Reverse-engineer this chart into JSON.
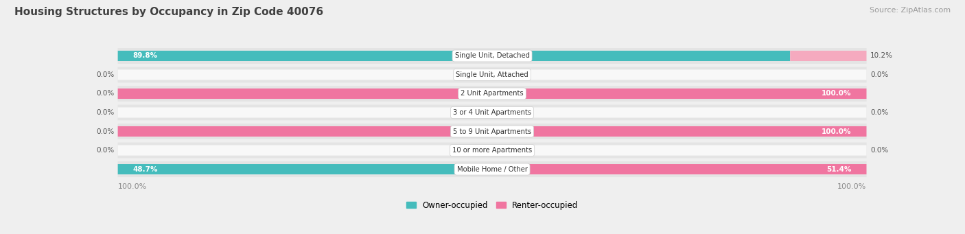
{
  "title": "Housing Structures by Occupancy in Zip Code 40076",
  "source": "Source: ZipAtlas.com",
  "categories": [
    "Single Unit, Detached",
    "Single Unit, Attached",
    "2 Unit Apartments",
    "3 or 4 Unit Apartments",
    "5 to 9 Unit Apartments",
    "10 or more Apartments",
    "Mobile Home / Other"
  ],
  "owner_pct": [
    89.8,
    0.0,
    0.0,
    0.0,
    0.0,
    0.0,
    48.7
  ],
  "renter_pct": [
    10.2,
    0.0,
    100.0,
    0.0,
    100.0,
    0.0,
    51.4
  ],
  "owner_color": "#45BCBC",
  "renter_color": "#F075A0",
  "owner_color_light": "#A8DEDE",
  "renter_color_light": "#F5AABF",
  "bg_color": "#EFEFEF",
  "row_bg": "#E4E4E4",
  "bar_bg": "#F8F8F8",
  "title_color": "#404040",
  "source_color": "#999999",
  "text_color": "#555555",
  "axis_label_color": "#888888",
  "min_own_vis": 8.0,
  "min_rent_vis": 8.0,
  "legend_label_owner": "Owner-occupied",
  "legend_label_renter": "Renter-occupied",
  "axis_left_label": "100.0%",
  "axis_right_label": "100.0%"
}
